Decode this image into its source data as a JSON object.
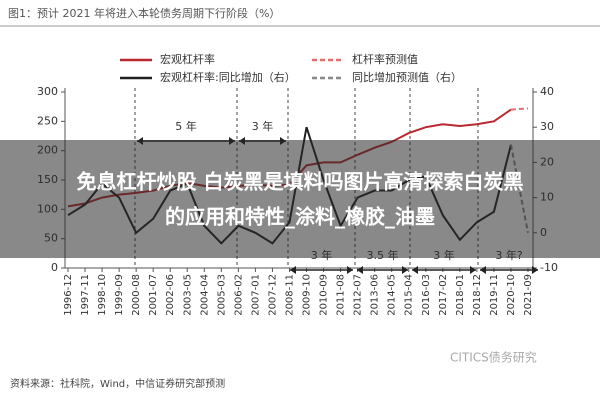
{
  "chart_data": {
    "type": "line",
    "title": "图1：预计 2021 年将进入本轮债务周期下行阶段（%）",
    "categories": [
      "1996-12",
      "1997-11",
      "1998-10",
      "1999-09",
      "2000-08",
      "2001-07",
      "2002-06",
      "2003-05",
      "2004-04",
      "2005-03",
      "2006-02",
      "2007-01",
      "2007-12",
      "2008-11",
      "2009-10",
      "2010-09",
      "2011-08",
      "2012-07",
      "2013-06",
      "2014-05",
      "2015-04",
      "2016-03",
      "2017-02",
      "2018-01",
      "2018-12",
      "2019-11",
      "2020-10",
      "2021-09"
    ],
    "series": [
      {
        "name": "宏观杠杆率",
        "color": "#b8282e",
        "dash": false,
        "values": [
          105,
          110,
          120,
          125,
          128,
          132,
          140,
          145,
          140,
          137,
          140,
          142,
          140,
          142,
          175,
          180,
          180,
          193,
          205,
          215,
          230,
          240,
          245,
          242,
          245,
          250,
          270,
          null
        ]
      },
      {
        "name": "杠杆率预测值",
        "color": "#e07070",
        "dash": true,
        "values": [
          null,
          null,
          null,
          null,
          null,
          null,
          null,
          null,
          null,
          null,
          null,
          null,
          null,
          null,
          null,
          null,
          null,
          null,
          null,
          null,
          null,
          null,
          null,
          null,
          null,
          null,
          270,
          272
        ]
      },
      {
        "name": "宏观杠杆率:同比增加（右）",
        "color": "#222222",
        "dash": false,
        "axis": "y2",
        "values": [
          5,
          8,
          14,
          10,
          0,
          4,
          12,
          14,
          2,
          -3,
          2,
          0,
          -3,
          3,
          30,
          15,
          2,
          10,
          12,
          12,
          15,
          16,
          5,
          -2,
          3,
          6,
          25,
          null
        ]
      },
      {
        "name": "同比增加预测值（右）",
        "color": "#888888",
        "dash": true,
        "axis": "y2",
        "values": [
          null,
          null,
          null,
          null,
          null,
          null,
          null,
          null,
          null,
          null,
          null,
          null,
          null,
          null,
          null,
          null,
          null,
          null,
          null,
          null,
          null,
          null,
          null,
          null,
          null,
          null,
          25,
          0
        ]
      }
    ],
    "ylim": [
      0,
      300
    ],
    "yticks": [
      0,
      50,
      100,
      150,
      200,
      250,
      300
    ],
    "y2lim": [
      -10,
      40
    ],
    "y2ticks": [
      -10,
      0,
      10,
      20,
      30,
      40
    ],
    "annotations": [
      "5 年",
      "3 年",
      "3 年",
      "3.5 年",
      "3 年",
      "3 年?"
    ],
    "source": "资料来源：社科院，Wind，中信证券研究部预测",
    "watermark": "CITICS债务研究"
  },
  "overlay": {
    "lines": [
      "免息杠杆炒股 白炭黑是填料吗图片高清探索白炭黑",
      "的应用和特性_涂料_橡胶_油墨"
    ]
  }
}
